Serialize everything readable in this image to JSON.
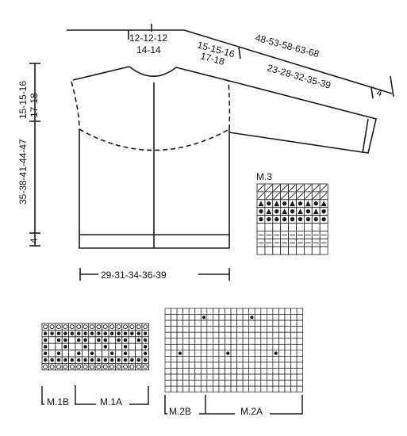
{
  "garment": {
    "neck_width": "12-12-12",
    "neck_width_2": "14-14",
    "shoulder": "15-15-16",
    "shoulder_2": "17-18",
    "sleeve_top": "48-53-58-63-68",
    "sleeve_bottom": "23-28-32-35-39",
    "cuff": "4",
    "yoke_depth": "15-15-16",
    "yoke_depth_2": "17-18",
    "total_length": "35-38-41-44-47",
    "rib_height": "4",
    "width": "29-31-34-36-39"
  },
  "charts": {
    "m3": {
      "title": "M.3",
      "rows": [
        [
          "d",
          "d",
          "d",
          "d",
          "d",
          "d",
          "d",
          "d",
          "d"
        ],
        [
          "d",
          "d",
          "d",
          "d",
          "d",
          "d",
          "d",
          "d",
          "d"
        ],
        [
          "t",
          "o",
          "t",
          "o",
          "t",
          "o",
          "t",
          "o",
          "t"
        ],
        [
          "o",
          "t",
          "o",
          "t",
          "o",
          "t",
          "o",
          "t",
          "o"
        ],
        [
          "o",
          "o",
          "o",
          "o",
          "o",
          "o",
          "o",
          "o",
          "o"
        ],
        [
          "e",
          "e",
          "e",
          "e",
          "e",
          "e",
          "e",
          "e",
          "e"
        ],
        [
          "h",
          "h",
          "h",
          "h",
          "h",
          "h",
          "h",
          "h",
          "h"
        ],
        [
          "h",
          "h",
          "h",
          "h",
          "h",
          "h",
          "h",
          "h",
          "h"
        ],
        [
          "e",
          "e",
          "e",
          "e",
          "e",
          "e",
          "e",
          "e",
          "e"
        ]
      ]
    },
    "m1": {
      "m1b_label": "M.1B",
      "m1a_label": "M.1A",
      "rows": [
        [
          "r",
          "r",
          "r",
          "r",
          "r",
          "r",
          "r",
          "r",
          "r",
          "r",
          "r",
          "r",
          "r",
          "r",
          "r",
          "r"
        ],
        [
          "o",
          "o",
          "o",
          "o",
          "o",
          "o",
          "o",
          "o",
          "o",
          "o",
          "o",
          "o",
          "o",
          "o",
          "o",
          "o"
        ],
        [
          "o",
          "e",
          "o",
          "o",
          "e",
          "o",
          "o",
          "e",
          "o",
          "o",
          "e",
          "o",
          "o",
          "e",
          "o",
          "o"
        ],
        [
          "o",
          "e",
          "e",
          "o",
          "e",
          "e",
          "o",
          "e",
          "e",
          "o",
          "e",
          "e",
          "o",
          "e",
          "e",
          "o"
        ],
        [
          "o",
          "e",
          "o",
          "e",
          "e",
          "o",
          "e",
          "o",
          "e",
          "e",
          "o",
          "e",
          "o",
          "e",
          "e",
          "o"
        ],
        [
          "o",
          "o",
          "o",
          "o",
          "o",
          "o",
          "o",
          "o",
          "o",
          "o",
          "o",
          "o",
          "o",
          "o",
          "o",
          "o"
        ],
        [
          "r",
          "r",
          "r",
          "r",
          "r",
          "r",
          "r",
          "r",
          "r",
          "r",
          "r",
          "r",
          "r",
          "r",
          "r",
          "r"
        ]
      ]
    },
    "m2": {
      "m2b_label": "M.2B",
      "m2a_label": "M.2A",
      "cols": 23,
      "rows": 14,
      "dots": [
        [
          1,
          6
        ],
        [
          1,
          14
        ],
        [
          7,
          2
        ],
        [
          7,
          10
        ],
        [
          7,
          18
        ]
      ]
    }
  },
  "colors": {
    "ink": "#1a1a1a",
    "paper": "#ffffff"
  }
}
